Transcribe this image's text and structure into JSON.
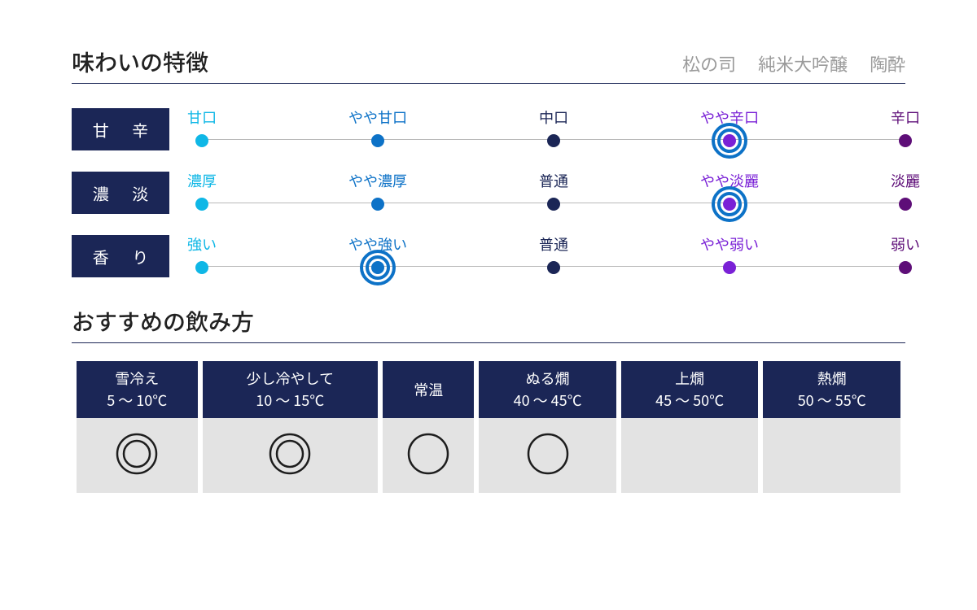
{
  "colors": {
    "navy": "#1b2656",
    "underline": "#1b2656",
    "product_text": "#9a9a9a",
    "track_line": "#b9b9b9",
    "cell_bg": "#e3e3e3",
    "mark_stroke": "#1d1d1d"
  },
  "header": {
    "title": "味わいの特徴",
    "product": [
      "松の司",
      "純米大吟醸",
      "陶酔"
    ]
  },
  "scales": [
    {
      "name": "甘 辛",
      "selected_index": 3,
      "ring_color": "#0d72c7",
      "points": [
        {
          "label": "甘口",
          "label_color": "#0fb7e6",
          "dot_color": "#0fb7e6"
        },
        {
          "label": "やや甘口",
          "label_color": "#0d72c7",
          "dot_color": "#0d72c7"
        },
        {
          "label": "中口",
          "label_color": "#1b2656",
          "dot_color": "#1b2656"
        },
        {
          "label": "やや辛口",
          "label_color": "#7a21d6",
          "dot_color": "#7a21d6"
        },
        {
          "label": "辛口",
          "label_color": "#5e0e78",
          "dot_color": "#5e0e78"
        }
      ]
    },
    {
      "name": "濃 淡",
      "selected_index": 3,
      "ring_color": "#0d72c7",
      "points": [
        {
          "label": "濃厚",
          "label_color": "#0fb7e6",
          "dot_color": "#0fb7e6"
        },
        {
          "label": "やや濃厚",
          "label_color": "#0d72c7",
          "dot_color": "#0d72c7"
        },
        {
          "label": "普通",
          "label_color": "#1b2656",
          "dot_color": "#1b2656"
        },
        {
          "label": "やや淡麗",
          "label_color": "#7a21d6",
          "dot_color": "#7a21d6"
        },
        {
          "label": "淡麗",
          "label_color": "#5e0e78",
          "dot_color": "#5e0e78"
        }
      ]
    },
    {
      "name": "香 り",
      "selected_index": 1,
      "ring_color": "#0d72c7",
      "points": [
        {
          "label": "強い",
          "label_color": "#0fb7e6",
          "dot_color": "#0fb7e6"
        },
        {
          "label": "やや強い",
          "label_color": "#0d72c7",
          "dot_color": "#0d72c7"
        },
        {
          "label": "普通",
          "label_color": "#1b2656",
          "dot_color": "#1b2656"
        },
        {
          "label": "やや弱い",
          "label_color": "#7a21d6",
          "dot_color": "#7a21d6"
        },
        {
          "label": "弱い",
          "label_color": "#5e0e78",
          "dot_color": "#5e0e78"
        }
      ]
    }
  ],
  "serving": {
    "title": "おすすめの飲み方",
    "columns": [
      {
        "name": "雪冷え",
        "temp": "5 〜 10℃",
        "mark": "double"
      },
      {
        "name": "少し冷やして",
        "temp": "10 〜 15℃",
        "mark": "double"
      },
      {
        "name": "常温",
        "temp": "",
        "mark": "single"
      },
      {
        "name": "ぬる燗",
        "temp": "40 〜 45℃",
        "mark": "single"
      },
      {
        "name": "上燗",
        "temp": "45 〜 50℃",
        "mark": "none"
      },
      {
        "name": "熱燗",
        "temp": "50 〜 55℃",
        "mark": "none"
      }
    ]
  },
  "style": {
    "scale_label_bg": "#1b2656",
    "ring_border_width": 4,
    "dot_size": 16,
    "mark_outer_r": 24,
    "mark_inner_r": 16,
    "mark_stroke_w": 2.5
  }
}
